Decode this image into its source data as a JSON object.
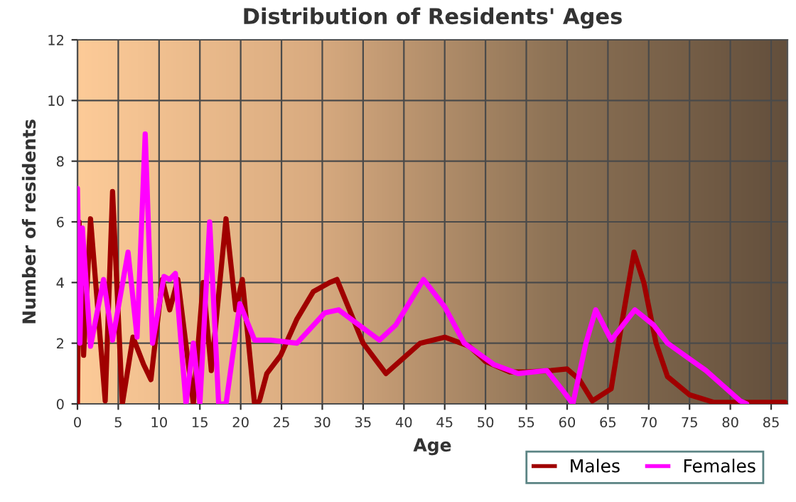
{
  "chart_data": {
    "type": "line",
    "title": "Distribution of Residents' Ages",
    "xlabel": "Age",
    "ylabel": "Number of residents",
    "xlim": [
      0,
      87
    ],
    "xticks": [
      0,
      5,
      10,
      15,
      20,
      25,
      30,
      35,
      40,
      45,
      50,
      55,
      60,
      65,
      70,
      75,
      80,
      85
    ],
    "ylim": [
      0,
      12
    ],
    "yticks": [
      0,
      2,
      4,
      6,
      8,
      10,
      12
    ],
    "grid": true,
    "legend": "bottom right",
    "line_style": "solid",
    "marker": "none",
    "series": [
      {
        "name": "Males",
        "color": "#a00000",
        "x": [
          0,
          0.2,
          0.75,
          1.6,
          3.4,
          4.3,
          5.5,
          6.8,
          8.1,
          9,
          10.4,
          11.3,
          12.3,
          14.2,
          15.4,
          16.4,
          18.2,
          19.4,
          20.2,
          21.7,
          22.3,
          23.2,
          24.9,
          26.9,
          28.9,
          30.9,
          31.8,
          35,
          37.8,
          42,
          45,
          48,
          50,
          53,
          55,
          58,
          60,
          61.5,
          63.1,
          65.4,
          66.6,
          68.2,
          69.4,
          70.9,
          72.3,
          75,
          78,
          86.7
        ],
        "values": [
          0,
          6,
          1.6,
          6.1,
          0.1,
          7,
          0,
          2.2,
          1.3,
          0.8,
          4.1,
          3.1,
          4.1,
          0,
          4,
          1.1,
          6.1,
          3.1,
          4.1,
          0,
          0.1,
          1,
          1.6,
          2.8,
          3.7,
          4,
          4.1,
          2,
          1,
          2,
          2.2,
          1.9,
          1.4,
          1.05,
          1.05,
          1.1,
          1.15,
          0.8,
          0.1,
          0.5,
          2.5,
          5,
          4,
          2,
          0.9,
          0.3,
          0.05,
          0.05
        ]
      },
      {
        "name": "Females",
        "color": "#ff00ff",
        "x": [
          0,
          0.3,
          0.6,
          1.6,
          3.2,
          4.3,
          6.2,
          7.3,
          8.3,
          9.2,
          10.6,
          11.3,
          12,
          13.3,
          14.2,
          15,
          16.2,
          17.3,
          18.2,
          19.9,
          21.7,
          23.7,
          26.9,
          30.3,
          32,
          34.5,
          37,
          39,
          42.4,
          45,
          47.4,
          51,
          54,
          57.5,
          59.3,
          60.7,
          62.3,
          63.5,
          65.4,
          68.3,
          70.6,
          72.3,
          77,
          81.2,
          82
        ],
        "values": [
          7.1,
          2,
          5.8,
          1.9,
          4.1,
          2.1,
          5,
          2.2,
          8.9,
          2,
          4.2,
          4.1,
          4.3,
          0,
          2,
          0,
          6,
          0,
          0,
          3.3,
          2.1,
          2.1,
          2,
          3,
          3.1,
          2.6,
          2.1,
          2.6,
          4.1,
          3.2,
          2,
          1.3,
          1,
          1.1,
          0.5,
          0,
          2,
          3.1,
          2.1,
          3.1,
          2.6,
          2,
          1.1,
          0.1,
          0
        ]
      }
    ]
  }
}
